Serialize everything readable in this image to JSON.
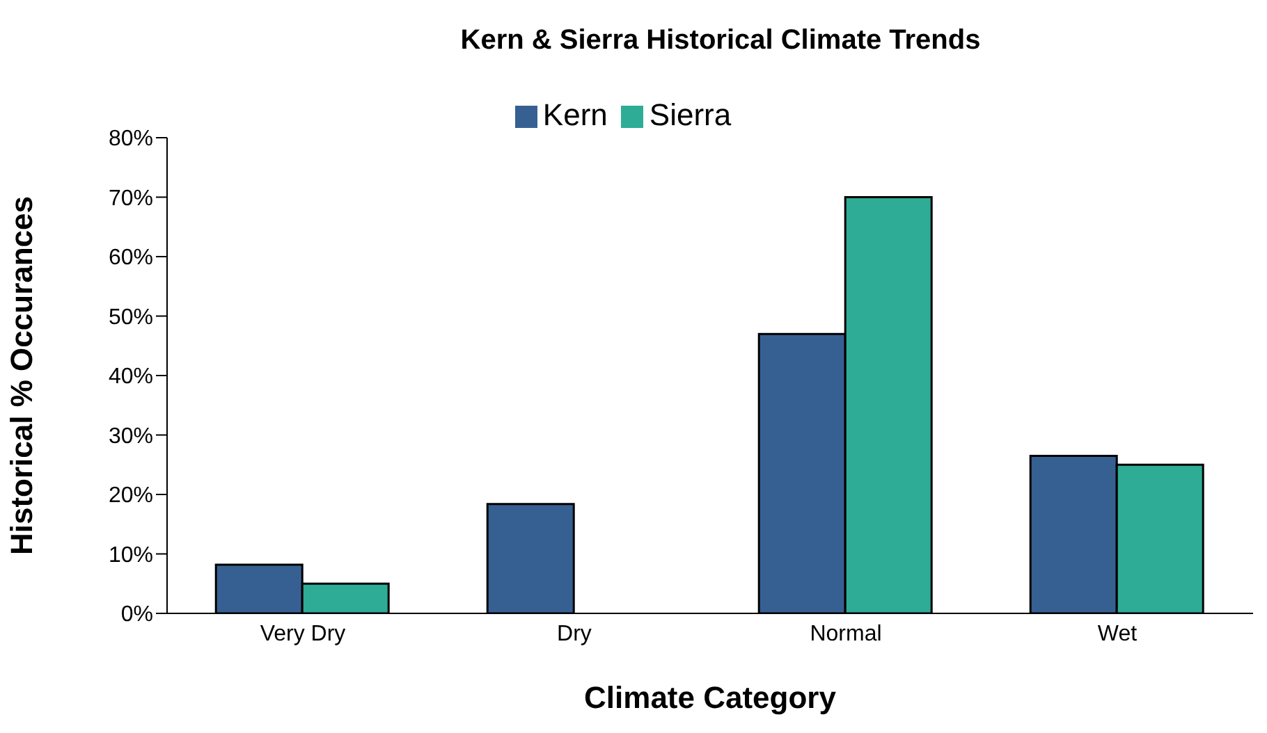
{
  "chart_data": {
    "type": "bar",
    "title": "Kern & Sierra Historical Climate Trends",
    "xlabel": "Climate Category",
    "ylabel": "Historical % Occurances",
    "categories": [
      "Very Dry",
      "Dry",
      "Normal",
      "Wet"
    ],
    "series": [
      {
        "name": "Kern",
        "color": "#376092",
        "values": [
          8.2,
          18.4,
          47,
          26.5
        ]
      },
      {
        "name": "Sierra",
        "color": "#2eac96",
        "values": [
          5,
          0,
          70,
          25
        ]
      }
    ],
    "ylim": [
      0,
      80
    ],
    "yticks": [
      {
        "value": 0,
        "label": "0%"
      },
      {
        "value": 10,
        "label": "10%"
      },
      {
        "value": 20,
        "label": "20%"
      },
      {
        "value": 30,
        "label": "30%"
      },
      {
        "value": 40,
        "label": "40%"
      },
      {
        "value": 50,
        "label": "50%"
      },
      {
        "value": 60,
        "label": "60%"
      },
      {
        "value": 70,
        "label": "70%"
      },
      {
        "value": 80,
        "label": "80%"
      }
    ],
    "grid": false,
    "legend": "top"
  }
}
